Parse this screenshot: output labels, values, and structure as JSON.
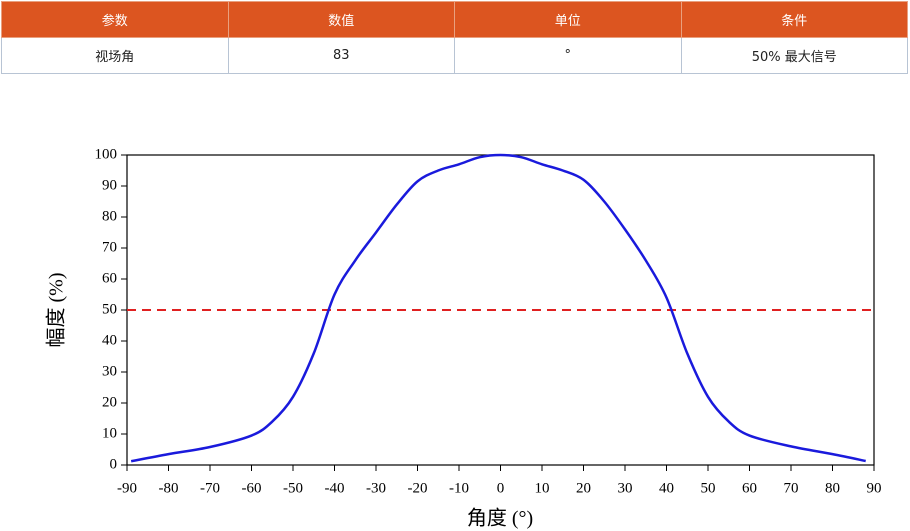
{
  "table": {
    "header": [
      "参数",
      "数值",
      "单位",
      "条件"
    ],
    "rows": [
      [
        "视场角",
        "83",
        "°",
        "50% 最大信号"
      ]
    ]
  },
  "chart_data": {
    "type": "line",
    "x_label": "角度 (°)",
    "y_label": "幅度 (%)",
    "x": [
      -89,
      -80,
      -70,
      -60,
      -55,
      -50,
      -45,
      -40,
      -35,
      -30,
      -25,
      -20,
      -15,
      -10,
      -5,
      0,
      5,
      10,
      15,
      20,
      25,
      30,
      35,
      40,
      45,
      50,
      55,
      60,
      70,
      80,
      88
    ],
    "series": [
      {
        "color": "#1a1adc",
        "values": [
          1.2,
          3.5,
          5.8,
          9.5,
          14,
          22,
          36,
          55,
          66,
          75,
          84,
          91.5,
          95,
          97,
          99.3,
          100,
          99.3,
          97,
          95,
          92,
          85,
          76,
          66,
          54,
          36,
          22,
          14,
          9.5,
          6,
          3.5,
          1.3
        ]
      }
    ],
    "threshold": {
      "value": 50,
      "color": "#e02020"
    },
    "xlim": [
      -90,
      90
    ],
    "xticks": [
      -90,
      -80,
      -70,
      -60,
      -50,
      -40,
      -30,
      -20,
      -10,
      0,
      10,
      20,
      30,
      40,
      50,
      60,
      70,
      80,
      90
    ],
    "ylim": [
      0,
      100
    ],
    "yticks": [
      0,
      10,
      20,
      30,
      40,
      50,
      60,
      70,
      80,
      90,
      100
    ]
  }
}
